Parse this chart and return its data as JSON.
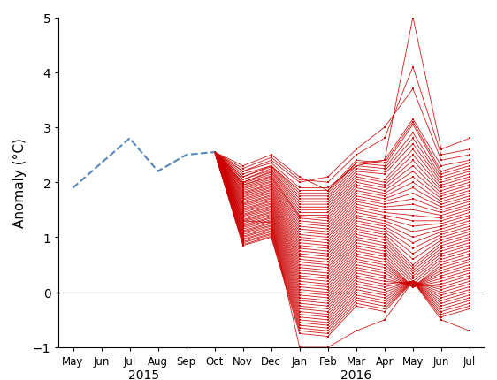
{
  "ylabel": "Anomaly (°C)",
  "ylim": [
    -1,
    5
  ],
  "yticks": [
    -1,
    0,
    1,
    2,
    3,
    4,
    5
  ],
  "obs_color": "#5588bb",
  "ensemble_color": "#cc0000",
  "obs_x": [
    0,
    1,
    2,
    3,
    4,
    5
  ],
  "obs_y": [
    1.9,
    2.35,
    2.8,
    2.2,
    2.5,
    2.55
  ],
  "ensemble_members": [
    [
      2.3,
      2.5,
      2.1,
      1.85,
      2.35,
      2.4,
      5.0,
      2.6,
      2.8
    ],
    [
      2.25,
      2.45,
      2.05,
      2.0,
      2.5,
      2.8,
      4.1,
      2.5,
      2.6
    ],
    [
      2.2,
      2.4,
      2.0,
      2.1,
      2.6,
      3.0,
      3.7,
      2.4,
      2.5
    ],
    [
      2.2,
      2.35,
      1.9,
      1.9,
      2.3,
      2.4,
      3.15,
      2.3,
      2.4
    ],
    [
      2.15,
      2.3,
      1.85,
      1.85,
      2.4,
      2.35,
      3.1,
      2.2,
      2.35
    ],
    [
      2.1,
      2.3,
      1.8,
      1.8,
      2.35,
      2.3,
      3.05,
      2.15,
      2.3
    ],
    [
      2.1,
      2.28,
      1.75,
      1.75,
      2.3,
      2.25,
      2.9,
      2.1,
      2.25
    ],
    [
      2.05,
      2.25,
      1.7,
      1.7,
      2.25,
      2.2,
      2.8,
      2.05,
      2.2
    ],
    [
      2.05,
      2.22,
      1.65,
      1.65,
      2.2,
      2.15,
      2.7,
      2.0,
      2.15
    ],
    [
      2.0,
      2.2,
      1.6,
      1.6,
      2.15,
      2.05,
      2.6,
      1.95,
      2.1
    ],
    [
      2.0,
      2.18,
      1.55,
      1.55,
      2.1,
      2.0,
      2.5,
      1.9,
      2.05
    ],
    [
      1.98,
      2.15,
      1.5,
      1.5,
      2.05,
      1.95,
      2.4,
      1.85,
      2.0
    ],
    [
      1.95,
      2.12,
      1.45,
      1.45,
      2.0,
      1.9,
      2.3,
      1.8,
      1.95
    ],
    [
      1.95,
      2.1,
      1.4,
      1.4,
      1.95,
      1.85,
      2.2,
      1.75,
      1.9
    ],
    [
      1.92,
      2.08,
      1.38,
      1.35,
      1.9,
      1.8,
      2.1,
      1.7,
      1.85
    ],
    [
      1.9,
      2.05,
      1.35,
      1.3,
      1.85,
      1.75,
      2.0,
      1.65,
      1.8
    ],
    [
      1.88,
      2.02,
      1.3,
      1.25,
      1.8,
      1.7,
      1.9,
      1.6,
      1.75
    ],
    [
      1.85,
      2.0,
      1.25,
      1.2,
      1.75,
      1.65,
      1.8,
      1.55,
      1.7
    ],
    [
      1.82,
      1.97,
      1.2,
      1.15,
      1.7,
      1.6,
      1.7,
      1.5,
      1.65
    ],
    [
      1.8,
      1.95,
      1.15,
      1.1,
      1.65,
      1.55,
      1.6,
      1.45,
      1.6
    ],
    [
      1.78,
      1.92,
      1.1,
      1.05,
      1.6,
      1.5,
      1.5,
      1.4,
      1.55
    ],
    [
      1.75,
      1.9,
      1.05,
      1.0,
      1.55,
      1.45,
      1.4,
      1.35,
      1.5
    ],
    [
      1.73,
      1.87,
      1.0,
      0.95,
      1.5,
      1.4,
      1.3,
      1.3,
      1.45
    ],
    [
      1.7,
      1.85,
      0.95,
      0.9,
      1.45,
      1.35,
      1.2,
      1.25,
      1.4
    ],
    [
      1.68,
      1.82,
      0.9,
      0.85,
      1.4,
      1.3,
      1.1,
      1.2,
      1.35
    ],
    [
      1.65,
      1.8,
      0.85,
      0.8,
      1.35,
      1.25,
      1.0,
      1.15,
      1.3
    ],
    [
      1.62,
      1.77,
      0.8,
      0.75,
      1.3,
      1.2,
      0.9,
      1.1,
      1.25
    ],
    [
      1.6,
      1.75,
      0.75,
      0.7,
      1.25,
      1.15,
      0.8,
      1.05,
      1.2
    ],
    [
      1.58,
      1.72,
      0.7,
      0.65,
      1.2,
      1.1,
      0.7,
      1.0,
      1.15
    ],
    [
      1.55,
      1.7,
      0.65,
      0.6,
      1.15,
      1.05,
      0.6,
      0.95,
      1.1
    ],
    [
      1.52,
      1.67,
      0.6,
      0.55,
      1.1,
      1.0,
      0.5,
      0.9,
      1.05
    ],
    [
      1.5,
      1.65,
      0.55,
      0.5,
      1.05,
      0.95,
      0.45,
      0.85,
      1.0
    ],
    [
      1.48,
      1.62,
      0.5,
      0.45,
      1.0,
      0.9,
      0.4,
      0.8,
      0.95
    ],
    [
      1.45,
      1.6,
      0.45,
      0.4,
      0.95,
      0.85,
      0.35,
      0.75,
      0.9
    ],
    [
      1.42,
      1.57,
      0.4,
      0.35,
      0.9,
      0.8,
      0.3,
      0.7,
      0.85
    ],
    [
      1.4,
      1.55,
      0.35,
      0.3,
      0.85,
      0.75,
      0.25,
      0.65,
      0.8
    ],
    [
      1.38,
      1.52,
      0.3,
      0.25,
      0.8,
      0.7,
      0.2,
      0.6,
      0.75
    ],
    [
      1.35,
      1.5,
      0.25,
      0.2,
      0.75,
      0.65,
      0.15,
      0.55,
      0.7
    ],
    [
      1.32,
      1.47,
      0.2,
      0.15,
      0.7,
      0.6,
      0.1,
      0.5,
      0.65
    ],
    [
      1.3,
      1.45,
      0.15,
      0.1,
      0.65,
      0.55,
      0.1,
      0.45,
      0.6
    ],
    [
      1.28,
      1.42,
      0.1,
      0.05,
      0.6,
      0.5,
      0.1,
      0.4,
      0.55
    ],
    [
      1.25,
      1.4,
      0.05,
      0.0,
      0.55,
      0.45,
      0.1,
      0.35,
      0.5
    ],
    [
      1.22,
      1.37,
      0.0,
      -0.05,
      0.5,
      0.4,
      0.1,
      0.3,
      0.45
    ],
    [
      1.2,
      1.35,
      -0.05,
      -0.1,
      0.45,
      0.35,
      0.1,
      0.25,
      0.4
    ],
    [
      1.18,
      1.32,
      -0.1,
      -0.15,
      0.4,
      0.3,
      0.1,
      0.2,
      0.35
    ],
    [
      1.15,
      1.3,
      -0.15,
      -0.2,
      0.35,
      0.25,
      0.1,
      0.15,
      0.3
    ],
    [
      1.12,
      1.27,
      -0.2,
      -0.25,
      0.3,
      0.2,
      0.15,
      0.1,
      0.25
    ],
    [
      1.1,
      1.25,
      -0.25,
      -0.3,
      0.25,
      0.15,
      0.2,
      0.05,
      0.2
    ],
    [
      1.08,
      1.22,
      -0.3,
      -0.35,
      0.2,
      0.1,
      0.2,
      0.0,
      0.15
    ],
    [
      1.05,
      1.2,
      -0.35,
      -0.4,
      0.15,
      0.05,
      0.2,
      -0.05,
      0.1
    ],
    [
      1.02,
      1.17,
      -0.4,
      -0.45,
      0.1,
      0.0,
      0.2,
      -0.1,
      0.05
    ],
    [
      1.0,
      1.15,
      -0.45,
      -0.5,
      0.05,
      -0.05,
      0.2,
      -0.15,
      0.0
    ],
    [
      0.97,
      1.12,
      -0.5,
      -0.55,
      0.0,
      -0.1,
      0.2,
      -0.2,
      -0.05
    ],
    [
      0.95,
      1.1,
      -0.55,
      -0.6,
      -0.05,
      -0.15,
      0.2,
      -0.25,
      -0.1
    ],
    [
      0.92,
      1.07,
      -0.6,
      -0.65,
      -0.1,
      -0.2,
      0.2,
      -0.3,
      -0.15
    ],
    [
      0.9,
      1.05,
      -0.65,
      -0.7,
      -0.15,
      -0.25,
      0.2,
      -0.35,
      -0.2
    ],
    [
      0.87,
      1.02,
      -0.7,
      -0.75,
      -0.2,
      -0.3,
      0.2,
      -0.4,
      -0.25
    ],
    [
      0.85,
      1.0,
      -0.75,
      -0.8,
      -0.25,
      -0.35,
      0.2,
      -0.45,
      -0.3
    ],
    [
      1.3,
      1.27,
      -1.0,
      -1.0,
      -0.7,
      -0.5,
      0.2,
      -0.5,
      -0.7
    ]
  ]
}
